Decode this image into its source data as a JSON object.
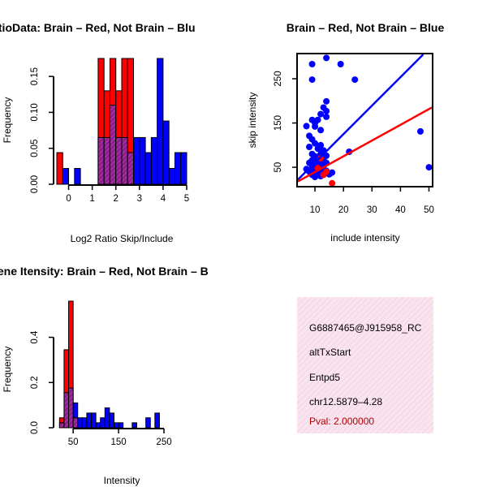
{
  "chart_data": [
    {
      "type": "bar",
      "title": "RatioData: Brain – Red, Not Brain – Blu",
      "xlabel": "Log2 Ratio Skip/Include",
      "ylabel": "Frequency",
      "xlim": [
        -0.5,
        5.0
      ],
      "ylim": [
        0,
        0.175
      ],
      "xticks": [
        "0",
        "1",
        "2",
        "3",
        "4",
        "5"
      ],
      "yticks": [
        "0.00",
        "0.05",
        "0.10",
        "0.15"
      ],
      "bin_width": 0.25,
      "series": [
        {
          "name": "Brain",
          "color": "#ff0000",
          "bins": [
            [
              -0.5,
              0.044
            ],
            [
              1.25,
              0.175
            ],
            [
              1.5,
              0.13
            ],
            [
              1.75,
              0.175
            ],
            [
              2.0,
              0.13
            ],
            [
              2.25,
              0.175
            ],
            [
              2.5,
              0.175
            ]
          ]
        },
        {
          "name": "Not Brain",
          "color": "#0000ff",
          "bins": [
            [
              -0.25,
              0.022
            ],
            [
              0.25,
              0.022
            ],
            [
              1.25,
              0.065
            ],
            [
              1.5,
              0.065
            ],
            [
              1.75,
              0.11
            ],
            [
              2.0,
              0.065
            ],
            [
              2.25,
              0.065
            ],
            [
              2.5,
              0.044
            ],
            [
              2.75,
              0.065
            ],
            [
              3.0,
              0.065
            ],
            [
              3.25,
              0.044
            ],
            [
              3.5,
              0.065
            ],
            [
              3.75,
              0.175
            ],
            [
              4.0,
              0.088
            ],
            [
              4.25,
              0.022
            ],
            [
              4.5,
              0.044
            ],
            [
              4.75,
              0.044
            ]
          ]
        }
      ]
    },
    {
      "type": "scatter",
      "title": "Brain – Red, Not Brain – Blue",
      "xlabel": "include intensity",
      "ylabel": "skip intensity",
      "xlim": [
        4,
        51
      ],
      "ylim": [
        8,
        305
      ],
      "xticks": [
        10,
        20,
        30,
        40,
        50
      ],
      "yticks": [
        50,
        150,
        250
      ],
      "series": [
        {
          "name": "Not Brain",
          "color": "#0000ff",
          "points": [
            [
              14,
              297
            ],
            [
              9,
              283
            ],
            [
              19,
              283
            ],
            [
              9,
              248
            ],
            [
              24,
              248
            ],
            [
              14,
              199
            ],
            [
              13,
              185
            ],
            [
              14,
              177
            ],
            [
              12,
              170
            ],
            [
              9,
              157
            ],
            [
              11,
              157
            ],
            [
              14,
              164
            ],
            [
              10,
              150
            ],
            [
              7,
              143
            ],
            [
              10,
              142
            ],
            [
              12,
              134
            ],
            [
              8,
              121
            ],
            [
              47,
              131
            ],
            [
              9,
              113
            ],
            [
              10,
              104
            ],
            [
              12,
              100
            ],
            [
              8,
              96
            ],
            [
              11,
              92
            ],
            [
              13,
              88
            ],
            [
              22,
              85
            ],
            [
              9,
              80
            ],
            [
              12,
              80
            ],
            [
              10,
              75
            ],
            [
              14,
              76
            ],
            [
              9,
              66
            ],
            [
              11,
              68
            ],
            [
              13,
              70
            ],
            [
              8,
              60
            ],
            [
              10,
              62
            ],
            [
              12,
              58
            ],
            [
              14,
              60
            ],
            [
              9,
              53
            ],
            [
              11,
              55
            ],
            [
              13,
              52
            ],
            [
              7,
              46
            ],
            [
              9,
              44
            ],
            [
              11,
              46
            ],
            [
              13,
              45
            ],
            [
              8,
              40
            ],
            [
              10,
              38
            ],
            [
              12,
              40
            ],
            [
              14,
              42
            ],
            [
              9,
              33
            ],
            [
              11,
              34
            ],
            [
              13,
              36
            ],
            [
              15,
              34
            ],
            [
              10,
              28
            ],
            [
              12,
              30
            ],
            [
              16,
              38
            ],
            [
              50,
              50
            ]
          ]
        },
        {
          "name": "Brain",
          "color": "#ff0000",
          "points": [
            [
              12,
              70
            ],
            [
              14,
              40
            ],
            [
              13,
              33
            ],
            [
              16,
              14
            ],
            [
              11,
              48
            ]
          ]
        }
      ],
      "fit_lines": [
        {
          "name": "Not Brain fit",
          "color": "#0000ff",
          "from": [
            4,
            22
          ],
          "to": [
            48,
            305
          ]
        },
        {
          "name": "Brain fit",
          "color": "#ff0000",
          "from": [
            4,
            18
          ],
          "to": [
            51,
            185
          ]
        }
      ]
    },
    {
      "type": "bar",
      "title": "Gene Itensity: Brain – Red, Not Brain – B",
      "xlabel": "Intensity",
      "ylabel": "Frequency",
      "xlim": [
        14,
        300
      ],
      "ylim": [
        0,
        0.56
      ],
      "xticks": [
        "50",
        "150",
        "250"
      ],
      "yticks": [
        "0.0",
        "0.2",
        "0.4"
      ],
      "bin_width": 10,
      "series": [
        {
          "name": "Brain",
          "color": "#ff0000",
          "bins": [
            [
              20,
              0.044
            ],
            [
              30,
              0.345
            ],
            [
              40,
              0.56
            ],
            [
              50,
              0.044
            ]
          ]
        },
        {
          "name": "Not Brain",
          "color": "#0000ff",
          "bins": [
            [
              20,
              0.022
            ],
            [
              30,
              0.155
            ],
            [
              40,
              0.175
            ],
            [
              50,
              0.11
            ],
            [
              60,
              0.044
            ],
            [
              70,
              0.044
            ],
            [
              80,
              0.065
            ],
            [
              90,
              0.065
            ],
            [
              100,
              0.022
            ],
            [
              110,
              0.044
            ],
            [
              120,
              0.088
            ],
            [
              130,
              0.065
            ],
            [
              140,
              0.022
            ],
            [
              150,
              0.022
            ],
            [
              180,
              0.022
            ],
            [
              210,
              0.044
            ],
            [
              230,
              0.065
            ]
          ]
        }
      ]
    }
  ],
  "info_panel": {
    "line1": "G6887465@J915958_RC",
    "line2": "altTxStart",
    "line3": "Entpd5",
    "line4": "chr12.5879–4.28",
    "pval": "Pval: 2.000000"
  }
}
